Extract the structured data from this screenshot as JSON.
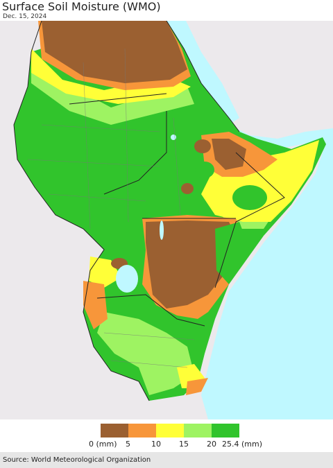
{
  "header": {
    "title": "Surface Soil Moisture (WMO)",
    "date": "Dec. 15, 2024"
  },
  "legend": {
    "bins": [
      {
        "color": "#9b6031",
        "low": 0,
        "high": 5
      },
      {
        "color": "#f7963a",
        "low": 5,
        "high": 10
      },
      {
        "color": "#ffff38",
        "low": 10,
        "high": 15
      },
      {
        "color": "#9ef362",
        "low": 15,
        "high": 20
      },
      {
        "color": "#31c42c",
        "low": 20,
        "high": 25.4
      }
    ],
    "ticks": [
      "0 (mm)",
      "5",
      "10",
      "15",
      "20",
      "25.4 (mm)"
    ]
  },
  "colors": {
    "water": "#bff8ff",
    "no_data_land": "#ece9ec",
    "border": "#222222"
  },
  "footer": {
    "source": "Source: World Meteorological Organization"
  }
}
